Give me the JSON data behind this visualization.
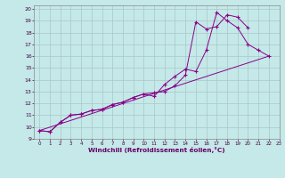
{
  "xlabel": "Windchill (Refroidissement éolien,°C)",
  "bg_color": "#c5e8e8",
  "grid_color": "#a8c8c8",
  "line_color": "#880088",
  "xlim": [
    -0.5,
    23
  ],
  "ylim": [
    9,
    20.3
  ],
  "xticks": [
    0,
    1,
    2,
    3,
    4,
    5,
    6,
    7,
    8,
    9,
    10,
    11,
    12,
    13,
    14,
    15,
    16,
    17,
    18,
    19,
    20,
    21,
    22,
    23
  ],
  "yticks": [
    9,
    10,
    11,
    12,
    13,
    14,
    15,
    16,
    17,
    18,
    19,
    20
  ],
  "line1_x": [
    0,
    1,
    2,
    3,
    4,
    5,
    6,
    7,
    8,
    9,
    10,
    11,
    12,
    13,
    14,
    15,
    16,
    17,
    18,
    19,
    20,
    21,
    22
  ],
  "line1_y": [
    9.7,
    9.6,
    10.4,
    11.0,
    11.1,
    11.4,
    11.5,
    11.9,
    12.1,
    12.5,
    12.8,
    12.6,
    13.6,
    14.3,
    14.9,
    14.7,
    16.5,
    19.7,
    19.0,
    18.4,
    17.0,
    16.5,
    16.0
  ],
  "line2_x": [
    0,
    1,
    2,
    3,
    4,
    5,
    6,
    7,
    8,
    9,
    10,
    11,
    12,
    13,
    14,
    15,
    16,
    17,
    18,
    19,
    20
  ],
  "line2_y": [
    9.7,
    9.6,
    10.4,
    11.0,
    11.1,
    11.4,
    11.5,
    11.9,
    12.1,
    12.5,
    12.8,
    12.9,
    13.0,
    13.5,
    14.4,
    18.9,
    18.3,
    18.5,
    19.5,
    19.3,
    18.4
  ],
  "line3_x": [
    0,
    22
  ],
  "line3_y": [
    9.7,
    16.0
  ]
}
